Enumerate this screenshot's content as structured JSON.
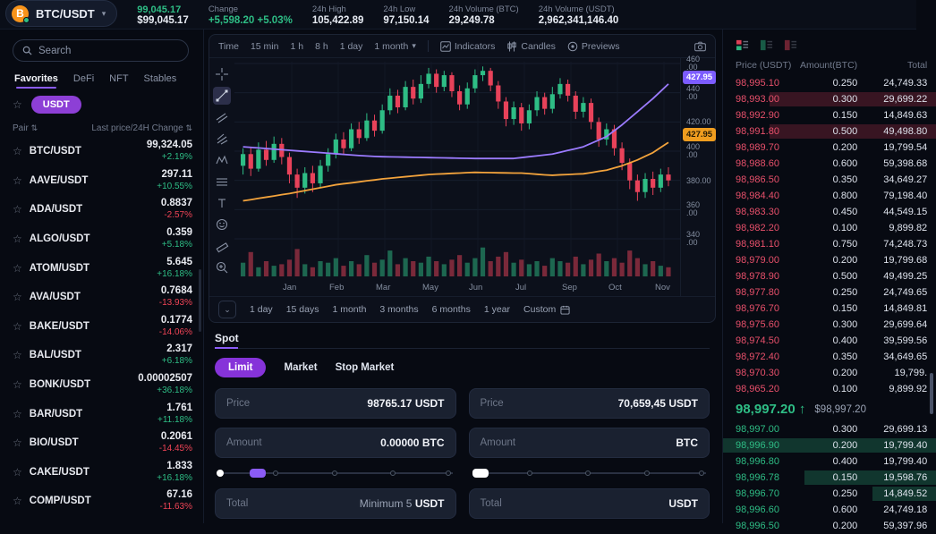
{
  "icons": {
    "chevron_down": "▾",
    "sort": "⇅",
    "star": "☆",
    "arrow_up": "↑",
    "collapse": "⌄"
  },
  "topbar": {
    "pair": "BTC/USDT",
    "coin_letter": "B",
    "price": "99,045.17",
    "price_usd": "$99,045.17",
    "stats": [
      {
        "label": "Change",
        "value": "+5,598.20 +5.03%",
        "color": "green"
      },
      {
        "label": "24h High",
        "value": "105,422.89",
        "color": "white"
      },
      {
        "label": "24h Low",
        "value": "97,150.14",
        "color": "white"
      },
      {
        "label": "24h Volume (BTC)",
        "value": "29,249.78",
        "color": "white"
      },
      {
        "label": "24h Volume (USDT)",
        "value": "2,962,341,146.40",
        "color": "white"
      }
    ]
  },
  "sidebar": {
    "search_placeholder": "Search",
    "tabs": [
      "Favorites",
      "DeFi",
      "NFT",
      "Stables"
    ],
    "active_tab": "Favorites",
    "filter_chip": "USDT",
    "col_pair": "Pair",
    "col_price": "Last price/24H Change",
    "pairs": [
      {
        "name": "BTC/USDT",
        "price": "99,324.05",
        "change": "+2.19%",
        "dir": "up"
      },
      {
        "name": "AAVE/USDT",
        "price": "297.11",
        "change": "+10.55%",
        "dir": "up"
      },
      {
        "name": "ADA/USDT",
        "price": "0.8837",
        "change": "-2.57%",
        "dir": "down"
      },
      {
        "name": "ALGO/USDT",
        "price": "0.359",
        "change": "+5.18%",
        "dir": "up"
      },
      {
        "name": "ATOM/USDT",
        "price": "5.645",
        "change": "+16.18%",
        "dir": "up"
      },
      {
        "name": "AVA/USDT",
        "price": "0.7684",
        "change": "-13.93%",
        "dir": "down"
      },
      {
        "name": "BAKE/USDT",
        "price": "0.1774",
        "change": "-14.06%",
        "dir": "down"
      },
      {
        "name": "BAL/USDT",
        "price": "2.317",
        "change": "+6.18%",
        "dir": "up"
      },
      {
        "name": "BONK/USDT",
        "price": "0.00002507",
        "change": "+36.18%",
        "dir": "up"
      },
      {
        "name": "BAR/USDT",
        "price": "1.761",
        "change": "+11.18%",
        "dir": "up"
      },
      {
        "name": "BIO/USDT",
        "price": "0.2061",
        "change": "-14.45%",
        "dir": "down"
      },
      {
        "name": "CAKE/USDT",
        "price": "1.833",
        "change": "+16.18%",
        "dir": "up"
      },
      {
        "name": "COMP/USDT",
        "price": "67.16",
        "change": "-11.63%",
        "dir": "down"
      }
    ]
  },
  "chart": {
    "toolbar": {
      "time_label": "Time",
      "intervals": [
        "15 min",
        "1 h",
        "8 h",
        "1 day"
      ],
      "dropdown": "1 month",
      "buttons": [
        "Indicators",
        "Candles",
        "Previews"
      ]
    },
    "tools": [
      "crosshair",
      "trend-line",
      "channels",
      "pitchfork",
      "xabcd-pattern",
      "lines",
      "text",
      "emoji",
      "ruler",
      "zoom-in"
    ],
    "ranges": [
      "1 day",
      "15 days",
      "1 month",
      "3 months",
      "6 months",
      "1 year",
      "Custom"
    ]
  },
  "chart_data": {
    "type": "candlestick",
    "x_labels": [
      "Jan",
      "Feb",
      "Mar",
      "May",
      "Jun",
      "Jul",
      "Sep",
      "Oct",
      "Nov"
    ],
    "y_ticks": [
      {
        "price": 460,
        "lines": "460\n.00"
      },
      {
        "price": 440,
        "lines": "440\n.00"
      },
      {
        "price": 420,
        "lines": "420.00"
      },
      {
        "price": 400,
        "lines": "400\n.00"
      },
      {
        "price": 380,
        "lines": "380.00"
      },
      {
        "price": 360,
        "lines": "360\n.00"
      },
      {
        "price": 340,
        "lines": "340\n.00"
      }
    ],
    "badges": [
      {
        "label": "427.95",
        "color": "purple",
        "at_price": 450
      },
      {
        "label": "427.95",
        "color": "orange",
        "at_price": 411
      }
    ],
    "candles": [
      [
        390,
        402,
        384,
        398
      ],
      [
        398,
        403,
        383,
        388
      ],
      [
        388,
        406,
        386,
        401
      ],
      [
        401,
        407,
        390,
        394
      ],
      [
        394,
        410,
        392,
        405
      ],
      [
        405,
        409,
        391,
        396
      ],
      [
        396,
        399,
        378,
        384
      ],
      [
        384,
        388,
        368,
        375
      ],
      [
        375,
        389,
        371,
        385
      ],
      [
        385,
        390,
        372,
        378
      ],
      [
        378,
        394,
        375,
        390
      ],
      [
        390,
        402,
        386,
        398
      ],
      [
        398,
        412,
        395,
        408
      ],
      [
        408,
        413,
        398,
        402
      ],
      [
        402,
        419,
        400,
        415
      ],
      [
        415,
        420,
        405,
        409
      ],
      [
        409,
        426,
        407,
        421
      ],
      [
        421,
        425,
        410,
        414
      ],
      [
        414,
        432,
        412,
        428
      ],
      [
        428,
        443,
        425,
        438
      ],
      [
        438,
        442,
        426,
        430
      ],
      [
        430,
        448,
        428,
        444
      ],
      [
        444,
        449,
        432,
        436
      ],
      [
        436,
        452,
        433,
        446
      ],
      [
        446,
        457,
        443,
        453
      ],
      [
        453,
        456,
        440,
        444
      ],
      [
        444,
        455,
        441,
        452
      ],
      [
        452,
        454,
        437,
        441
      ],
      [
        441,
        445,
        428,
        432
      ],
      [
        432,
        447,
        429,
        443
      ],
      [
        443,
        456,
        440,
        452
      ],
      [
        452,
        458,
        448,
        455
      ],
      [
        455,
        457,
        441,
        445
      ],
      [
        445,
        448,
        429,
        434
      ],
      [
        434,
        437,
        417,
        422
      ],
      [
        422,
        434,
        418,
        430
      ],
      [
        430,
        433,
        414,
        419
      ],
      [
        419,
        432,
        415,
        428
      ],
      [
        428,
        441,
        424,
        437
      ],
      [
        437,
        440,
        425,
        429
      ],
      [
        429,
        444,
        426,
        439
      ],
      [
        439,
        450,
        436,
        446
      ],
      [
        446,
        449,
        434,
        438
      ],
      [
        438,
        441,
        422,
        427
      ],
      [
        427,
        437,
        423,
        433
      ],
      [
        433,
        436,
        415,
        420
      ],
      [
        420,
        423,
        403,
        408
      ],
      [
        408,
        419,
        404,
        415
      ],
      [
        415,
        418,
        397,
        402
      ],
      [
        402,
        406,
        387,
        392
      ],
      [
        392,
        395,
        374,
        380
      ],
      [
        380,
        384,
        366,
        372
      ],
      [
        372,
        385,
        368,
        381
      ],
      [
        381,
        386,
        370,
        375
      ],
      [
        375,
        388,
        372,
        384
      ],
      [
        384,
        389,
        376,
        380
      ]
    ],
    "volume": [
      0.45,
      0.8,
      0.3,
      0.5,
      0.35,
      0.4,
      0.55,
      0.9,
      0.4,
      0.3,
      0.5,
      0.45,
      0.6,
      0.35,
      0.5,
      0.4,
      0.7,
      0.45,
      0.55,
      0.85,
      0.4,
      0.6,
      0.5,
      0.45,
      0.65,
      0.5,
      0.4,
      0.55,
      0.7,
      0.45,
      0.6,
      0.95,
      0.5,
      0.65,
      0.8,
      0.45,
      0.55,
      0.4,
      0.5,
      0.35,
      0.6,
      0.5,
      0.45,
      0.65,
      0.4,
      0.55,
      0.75,
      0.5,
      0.6,
      0.45,
      0.85,
      0.6,
      0.4,
      0.5,
      0.35,
      0.3
    ],
    "ma_purple": [
      403,
      402.6,
      402.2,
      401.8,
      401.4,
      401,
      400.6,
      400.2,
      399.8,
      399.4,
      399,
      398.6,
      398.2,
      397.8,
      397.4,
      397,
      396.7,
      396.4,
      396.2,
      396.1,
      396,
      395.9,
      395.8,
      395.7,
      395.6,
      395.5,
      395.4,
      395.3,
      395.2,
      395.1,
      395,
      395,
      395,
      395,
      395,
      395,
      395.6,
      396.2,
      396.8,
      397.4,
      398,
      399.2,
      400.5,
      401.7,
      403,
      405.3,
      407.6,
      410,
      414,
      418,
      422.5,
      427,
      431.5,
      436,
      441,
      446
    ],
    "ma_orange": [
      366,
      366.8,
      367.7,
      368.5,
      369.3,
      370.2,
      371,
      372,
      373,
      374,
      375,
      376,
      377,
      377.7,
      378.3,
      379,
      379.7,
      380.3,
      381,
      381.5,
      382,
      382.5,
      383,
      383.5,
      384,
      384.3,
      384.5,
      384.8,
      385,
      385.3,
      385.5,
      385.4,
      385.3,
      385.2,
      385.1,
      385,
      385,
      384.6,
      384.2,
      383.8,
      383.5,
      383.8,
      384,
      384.3,
      384.5,
      385.3,
      386.2,
      387,
      388.5,
      390,
      392,
      394,
      396.5,
      399,
      402.5,
      406
    ],
    "colors": {
      "up": "#2ebd85",
      "down": "#e8425a",
      "ma_purple": "#9b7bff",
      "ma_orange": "#f3a33c"
    }
  },
  "order_form": {
    "section": "Spot",
    "types": [
      "Limit",
      "Market",
      "Stop Market"
    ],
    "active_type": "Limit",
    "buy": {
      "price_label": "Price",
      "price_value": "98765.17",
      "price_unit": "USDT",
      "amount_label": "Amount",
      "amount_value": "0.00000",
      "amount_unit": "BTC",
      "total_label": "Total",
      "total_value": "Minimum 5",
      "total_unit": "USDT",
      "slider_pos": 17
    },
    "sell": {
      "price_label": "Price",
      "price_value": "70,659,45",
      "price_unit": "USDT",
      "amount_label": "Amount",
      "amount_value": "",
      "amount_unit": "BTC",
      "total_label": "Total",
      "total_value": "",
      "total_unit": "USDT",
      "slider_pos": 0
    }
  },
  "orderbook": {
    "headers": {
      "price": "Price (USDT)",
      "amount": "Amount(BTC)",
      "total": "Total"
    },
    "asks": [
      {
        "p": "98,995.10",
        "a": "0.250",
        "t": "24,749.33",
        "depth": 0
      },
      {
        "p": "98,993.00",
        "a": "0.300",
        "t": "29,699.22",
        "depth": 0.78
      },
      {
        "p": "98,992.90",
        "a": "0.150",
        "t": "14,849.63",
        "depth": 0
      },
      {
        "p": "98,991.80",
        "a": "0.500",
        "t": "49,498.80",
        "depth": 0.78
      },
      {
        "p": "98,989.70",
        "a": "0.200",
        "t": "19,799.54",
        "depth": 0
      },
      {
        "p": "98,988.60",
        "a": "0.600",
        "t": "59,398.68",
        "depth": 0
      },
      {
        "p": "98,986.50",
        "a": "0.350",
        "t": "34,649.27",
        "depth": 0
      },
      {
        "p": "98,984.40",
        "a": "0.800",
        "t": "79,198.40",
        "depth": 0
      },
      {
        "p": "98,983.30",
        "a": "0.450",
        "t": "44,549.15",
        "depth": 0
      },
      {
        "p": "98,982.20",
        "a": "0.100",
        "t": "9,899.82",
        "depth": 0
      },
      {
        "p": "98,981.10",
        "a": "0.750",
        "t": "74,248.73",
        "depth": 0
      },
      {
        "p": "98,979.00",
        "a": "0.200",
        "t": "19,799.68",
        "depth": 0
      },
      {
        "p": "98,978.90",
        "a": "0.500",
        "t": "49,499.25",
        "depth": 0
      },
      {
        "p": "98,977.80",
        "a": "0.250",
        "t": "24,749.65",
        "depth": 0
      },
      {
        "p": "98,976.70",
        "a": "0.150",
        "t": "14,849.81",
        "depth": 0
      },
      {
        "p": "98,975.60",
        "a": "0.300",
        "t": "29,699.64",
        "depth": 0
      },
      {
        "p": "98,974.50",
        "a": "0.400",
        "t": "39,599.56",
        "depth": 0
      },
      {
        "p": "98,972.40",
        "a": "0.350",
        "t": "34,649.65",
        "depth": 0
      },
      {
        "p": "98,970.30",
        "a": "0.200",
        "t": "19,799.",
        "depth": 0
      },
      {
        "p": "98,965.20",
        "a": "0.100",
        "t": "9,899.92",
        "depth": 0
      }
    ],
    "mid": {
      "price": "98,997.20",
      "usd": "$98,997.20"
    },
    "bids": [
      {
        "p": "98,997.00",
        "a": "0.300",
        "t": "29,699.13",
        "depth": 0
      },
      {
        "p": "98,996.90",
        "a": "0.200",
        "t": "19,799.40",
        "depth": 1.0
      },
      {
        "p": "98,996.80",
        "a": "0.400",
        "t": "19,799.40",
        "depth": 0
      },
      {
        "p": "98,996.78",
        "a": "0.150",
        "t": "19,598.76",
        "depth": 0.62
      },
      {
        "p": "98,996.70",
        "a": "0.250",
        "t": "14,849.52",
        "depth": 0.3
      },
      {
        "p": "98,996.60",
        "a": "0.600",
        "t": "24,749.18",
        "depth": 0
      },
      {
        "p": "98,996.50",
        "a": "0.200",
        "t": "59,397.96",
        "depth": 0
      }
    ]
  }
}
